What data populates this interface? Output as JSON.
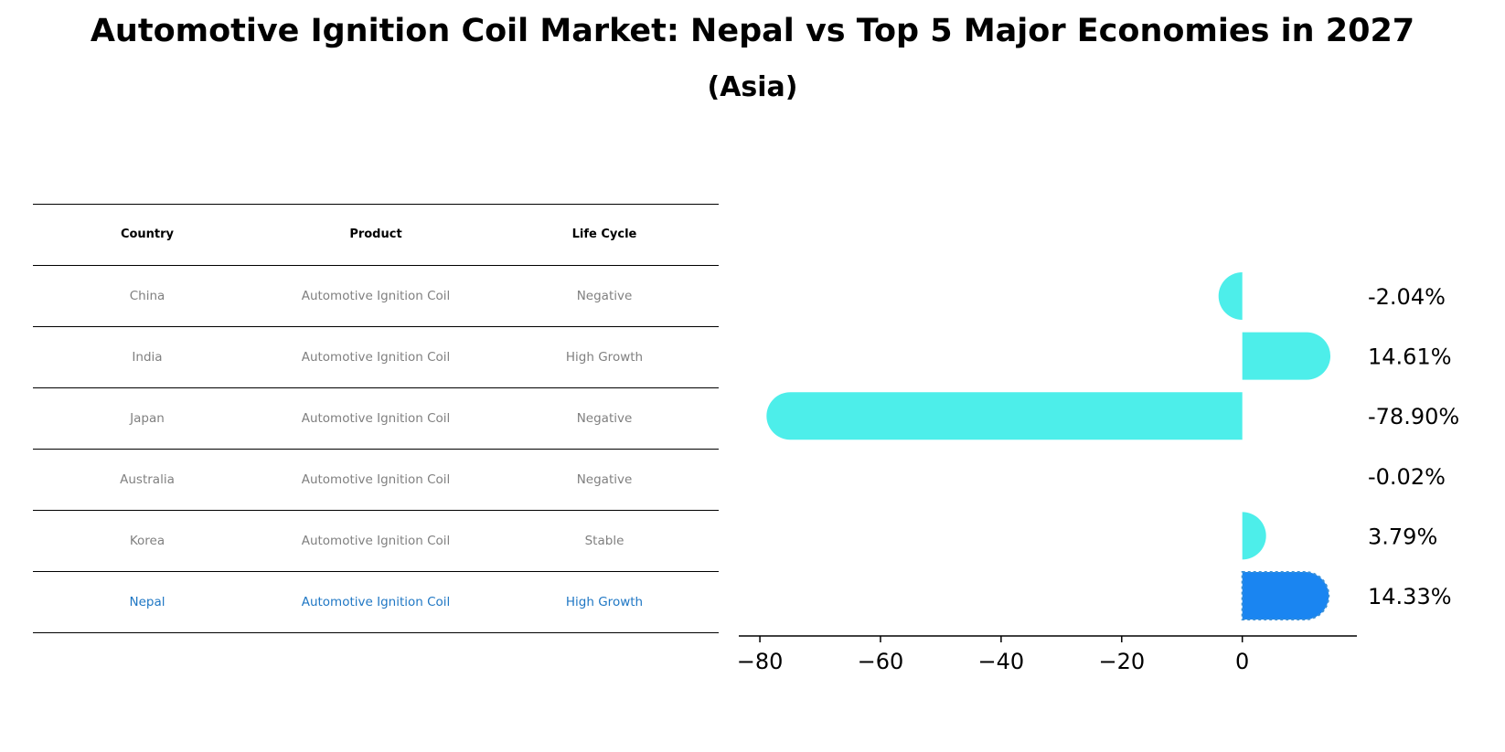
{
  "title": "Automotive Ignition Coil Market: Nepal vs Top 5 Major Economies in 2027",
  "subtitle": "(Asia)",
  "table": {
    "headers": [
      "Country",
      "Product",
      "Life Cycle"
    ],
    "rows": [
      [
        "China",
        "Automotive Ignition Coil",
        "Negative"
      ],
      [
        "India",
        "Automotive Ignition Coil",
        "High Growth"
      ],
      [
        "Japan",
        "Automotive Ignition Coil",
        "Negative"
      ],
      [
        "Australia",
        "Automotive Ignition Coil",
        "Negative"
      ],
      [
        "Korea",
        "Automotive Ignition Coil",
        "Stable"
      ],
      [
        "Nepal",
        "Automotive Ignition Coil",
        "High Growth"
      ]
    ],
    "highlight_row": 5,
    "highlight_color": "#1f77c4",
    "text_color": "#808080"
  },
  "chart_data": {
    "type": "bar",
    "orientation": "horizontal",
    "categories": [
      "China",
      "India",
      "Japan",
      "Australia",
      "Korea",
      "Nepal"
    ],
    "values": [
      -2.04,
      14.61,
      -78.9,
      -0.02,
      3.79,
      14.33
    ],
    "value_labels": [
      "-2.04%",
      "14.61%",
      "-78.90%",
      "-0.02%",
      "3.79%",
      "14.33%"
    ],
    "xticks": [
      -80,
      -60,
      -40,
      -20,
      0
    ],
    "xtick_labels": [
      "−80",
      "−60",
      "−40",
      "−20",
      "0"
    ],
    "xlim": [
      -83.5,
      19
    ],
    "bar_color": "#4deeea",
    "highlight_color": "#1a85f1",
    "highlight_index": 5,
    "grid": false
  }
}
